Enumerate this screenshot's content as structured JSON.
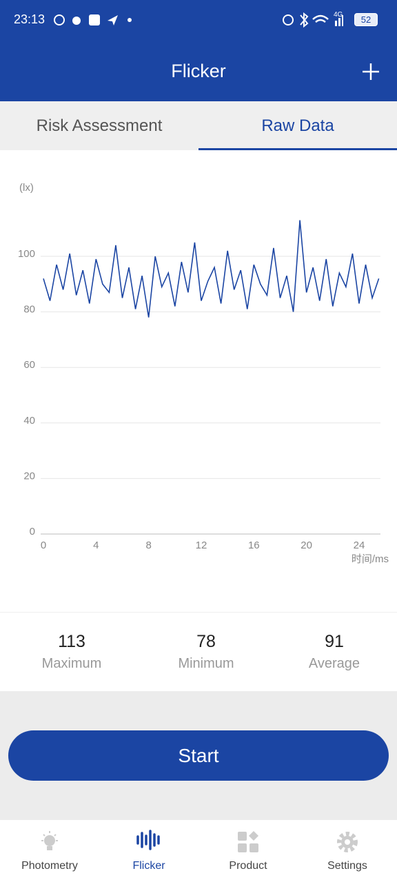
{
  "status_bar": {
    "time": "23:13",
    "network": "4G",
    "battery": "52"
  },
  "header": {
    "title": "Flicker"
  },
  "tabs": [
    "Risk Assessment",
    "Raw Data"
  ],
  "chart_data": {
    "type": "line",
    "y_label": "(lx)",
    "x_label": "时间/ms",
    "x": [
      0,
      0.5,
      1,
      1.5,
      2,
      2.5,
      3,
      3.5,
      4,
      4.5,
      5,
      5.5,
      6,
      6.5,
      7,
      7.5,
      8,
      8.5,
      9,
      9.5,
      10,
      10.5,
      11,
      11.5,
      12,
      12.5,
      13,
      13.5,
      14,
      14.5,
      15,
      15.5,
      16,
      16.5,
      17,
      17.5,
      18,
      18.5,
      19,
      19.5,
      20,
      20.5,
      21,
      21.5,
      22,
      22.5,
      23,
      23.5,
      24,
      24.5,
      25,
      25.5
    ],
    "values": [
      92,
      84,
      97,
      88,
      101,
      86,
      95,
      83,
      99,
      90,
      87,
      104,
      85,
      96,
      81,
      93,
      78,
      100,
      89,
      94,
      82,
      98,
      87,
      105,
      84,
      91,
      96,
      83,
      102,
      88,
      95,
      81,
      97,
      90,
      86,
      103,
      85,
      93,
      80,
      113,
      87,
      96,
      84,
      99,
      82,
      94,
      89,
      101,
      83,
      97,
      85,
      92
    ],
    "color": "#1b45a3",
    "xlim": [
      0,
      25.6
    ],
    "xticks": [
      0,
      4,
      8,
      12,
      16,
      20,
      24
    ],
    "ylim": [
      0,
      120
    ],
    "yticks": [
      0,
      20,
      40,
      60,
      80,
      100
    ],
    "grid": true
  },
  "stats": [
    {
      "value": "113",
      "label": "Maximum"
    },
    {
      "value": "78",
      "label": "Minimum"
    },
    {
      "value": "91",
      "label": "Average"
    }
  ],
  "button": "Start",
  "nav": [
    "Photometry",
    "Flicker",
    "Product",
    "Settings"
  ]
}
